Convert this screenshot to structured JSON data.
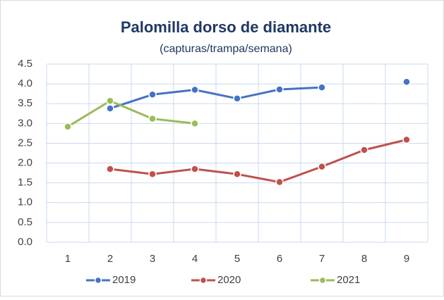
{
  "chart_data": {
    "type": "line",
    "title": "Palomilla dorso de diamante",
    "subtitle": "(capturas/trampa/semana)",
    "categories": [
      "1",
      "2",
      "3",
      "4",
      "5",
      "6",
      "7",
      "8",
      "9"
    ],
    "series": [
      {
        "name": "2019",
        "color": "#4472c4",
        "values": [
          null,
          3.38,
          3.73,
          3.85,
          3.63,
          3.86,
          3.91,
          null,
          4.05
        ]
      },
      {
        "name": "2020",
        "color": "#c0504d",
        "values": [
          null,
          1.85,
          1.72,
          1.85,
          1.72,
          1.52,
          1.91,
          2.33,
          2.59
        ]
      },
      {
        "name": "2021",
        "color": "#9bbb59",
        "values": [
          2.92,
          3.57,
          3.12,
          3.0,
          null,
          null,
          null,
          null,
          null
        ]
      }
    ],
    "ylim": [
      0,
      4.5
    ],
    "yticks": [
      {
        "value": 0,
        "label": "0.0"
      },
      0.5,
      {
        "value": 1,
        "label": "1.0"
      },
      1.5,
      {
        "value": 2,
        "label": "2.0"
      },
      2.5,
      {
        "value": 3,
        "label": "3.0"
      },
      3.5,
      {
        "value": 4,
        "label": "4.0"
      },
      4.5
    ],
    "grid": true,
    "legend": "bottom"
  }
}
